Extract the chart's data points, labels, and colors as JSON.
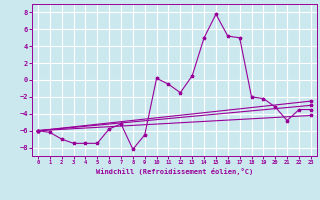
{
  "xlabel": "Windchill (Refroidissement éolien,°C)",
  "background_color": "#cce8ef",
  "grid_color": "#ffffff",
  "line_color": "#990099",
  "xlim": [
    -0.5,
    23.5
  ],
  "ylim": [
    -9,
    9
  ],
  "xticks": [
    0,
    1,
    2,
    3,
    4,
    5,
    6,
    7,
    8,
    9,
    10,
    11,
    12,
    13,
    14,
    15,
    16,
    17,
    18,
    19,
    20,
    21,
    22,
    23
  ],
  "yticks": [
    -8,
    -6,
    -4,
    -2,
    0,
    2,
    4,
    6,
    8
  ],
  "series1_x": [
    0,
    1,
    2,
    3,
    4,
    5,
    6,
    7,
    8,
    9,
    10,
    11,
    12,
    13,
    14,
    15,
    16,
    17,
    18,
    19,
    20,
    21,
    22,
    23
  ],
  "series1_y": [
    -6.0,
    -6.2,
    -7.0,
    -7.5,
    -7.5,
    -7.5,
    -5.8,
    -5.2,
    -8.2,
    -6.5,
    0.2,
    -0.5,
    -1.5,
    0.5,
    5.0,
    7.8,
    5.2,
    5.0,
    -2.0,
    -2.2,
    -3.2,
    -4.8,
    -3.5,
    -3.5
  ],
  "series2_x": [
    0,
    23
  ],
  "series2_y": [
    -6.0,
    -3.0
  ],
  "series3_x": [
    0,
    23
  ],
  "series3_y": [
    -6.0,
    -2.5
  ],
  "series4_x": [
    0,
    23
  ],
  "series4_y": [
    -6.0,
    -4.2
  ]
}
